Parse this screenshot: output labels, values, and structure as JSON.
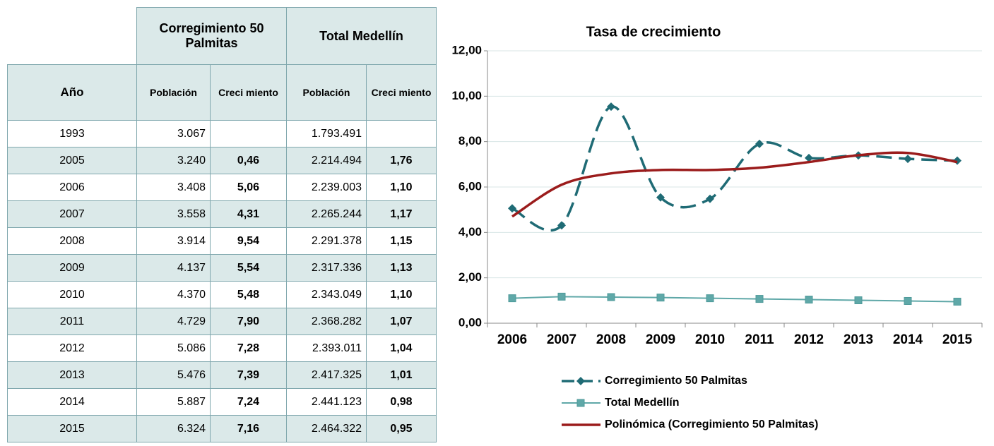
{
  "table": {
    "header_groups": [
      "Corregimiento 50 Palmitas",
      "Total Medellín"
    ],
    "columns": [
      "Año",
      "Población",
      "Creci miento",
      "Población",
      "Creci miento"
    ],
    "rows": [
      [
        "1993",
        "3.067",
        null,
        "1.793.491",
        null
      ],
      [
        "2005",
        "3.240",
        "0,46",
        "2.214.494",
        "1,76"
      ],
      [
        "2006",
        "3.408",
        "5,06",
        "2.239.003",
        "1,10"
      ],
      [
        "2007",
        "3.558",
        "4,31",
        "2.265.244",
        "1,17"
      ],
      [
        "2008",
        "3.914",
        "9,54",
        "2.291.378",
        "1,15"
      ],
      [
        "2009",
        "4.137",
        "5,54",
        "2.317.336",
        "1,13"
      ],
      [
        "2010",
        "4.370",
        "5,48",
        "2.343.049",
        "1,10"
      ],
      [
        "2011",
        "4.729",
        "7,90",
        "2.368.282",
        "1,07"
      ],
      [
        "2012",
        "5.086",
        "7,28",
        "2.393.011",
        "1,04"
      ],
      [
        "2013",
        "5.476",
        "7,39",
        "2.417.325",
        "1,01"
      ],
      [
        "2014",
        "5.887",
        "7,24",
        "2.441.123",
        "0,98"
      ],
      [
        "2015",
        "6.324",
        "7,16",
        "2.464.322",
        "0,95"
      ]
    ]
  },
  "chart_data": {
    "type": "line",
    "title": "Tasa de crecimiento",
    "categories": [
      "2006",
      "2007",
      "2008",
      "2009",
      "2010",
      "2011",
      "2012",
      "2013",
      "2014",
      "2015"
    ],
    "series": [
      {
        "name": "Corregimiento 50 Palmitas",
        "color": "#1f6b75",
        "dashed": true,
        "marker": "diamond",
        "smooth": true,
        "values": [
          5.06,
          4.31,
          9.54,
          5.54,
          5.48,
          7.9,
          7.28,
          7.39,
          7.24,
          7.16
        ]
      },
      {
        "name": "Total Medellín",
        "color": "#5fa8a8",
        "marker": "square",
        "values": [
          1.1,
          1.17,
          1.15,
          1.13,
          1.1,
          1.07,
          1.04,
          1.01,
          0.98,
          0.95
        ]
      },
      {
        "name": "Polinómica (Corregimiento 50 Palmitas)",
        "color": "#9b1c1c",
        "smooth": true,
        "values": [
          4.7,
          6.1,
          6.6,
          6.75,
          6.75,
          6.85,
          7.1,
          7.4,
          7.5,
          7.1
        ]
      }
    ],
    "ylim": [
      0,
      12
    ],
    "yticks": [
      {
        "value": 0,
        "label": "0,00"
      },
      {
        "value": 2,
        "label": "2,00"
      },
      {
        "value": 4,
        "label": "4,00"
      },
      {
        "value": 6,
        "label": "6,00"
      },
      {
        "value": 8,
        "label": "8,00"
      },
      {
        "value": 10,
        "label": "10,00"
      },
      {
        "value": 12,
        "label": "12,00"
      }
    ],
    "grid": true
  }
}
